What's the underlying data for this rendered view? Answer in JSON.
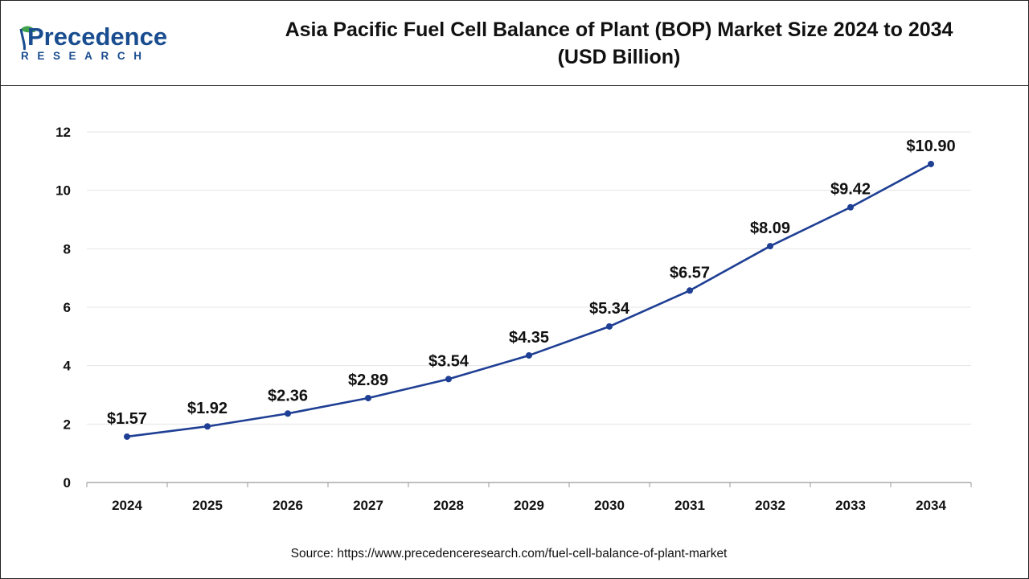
{
  "logo": {
    "name": "Precedence",
    "subtitle": "RESEARCH"
  },
  "title": {
    "line1": "Asia Pacific Fuel Cell Balance of Plant (BOP) Market Size 2024 to 2034",
    "line2": "(USD Billion)"
  },
  "source": "Source: https://www.precedenceresearch.com/fuel-cell-balance-of-plant-market",
  "colors": {
    "line": "#1f3f94",
    "grid": "#e6e6e6",
    "axis": "#999999",
    "brand": "#1a4d8f"
  },
  "chart_data": {
    "type": "line",
    "title": "Asia Pacific Fuel Cell Balance of Plant (BOP) Market Size 2024 to 2034 (USD Billion)",
    "xlabel": "",
    "ylabel": "",
    "categories": [
      "2024",
      "2025",
      "2026",
      "2027",
      "2028",
      "2029",
      "2030",
      "2031",
      "2032",
      "2033",
      "2034"
    ],
    "series": [
      {
        "values": [
          1.57,
          1.92,
          2.36,
          2.89,
          3.54,
          4.35,
          5.34,
          6.57,
          8.09,
          9.42,
          10.9
        ],
        "labels": [
          "$1.57",
          "$1.92",
          "$2.36",
          "$2.89",
          "$3.54",
          "$4.35",
          "$5.34",
          "$6.57",
          "$8.09",
          "$9.42",
          "$10.90"
        ]
      }
    ],
    "ylim": [
      0,
      12
    ],
    "yticks": [
      "0",
      "2",
      "4",
      "6",
      "8",
      "10",
      "12"
    ],
    "grid": true,
    "legend": "none"
  }
}
